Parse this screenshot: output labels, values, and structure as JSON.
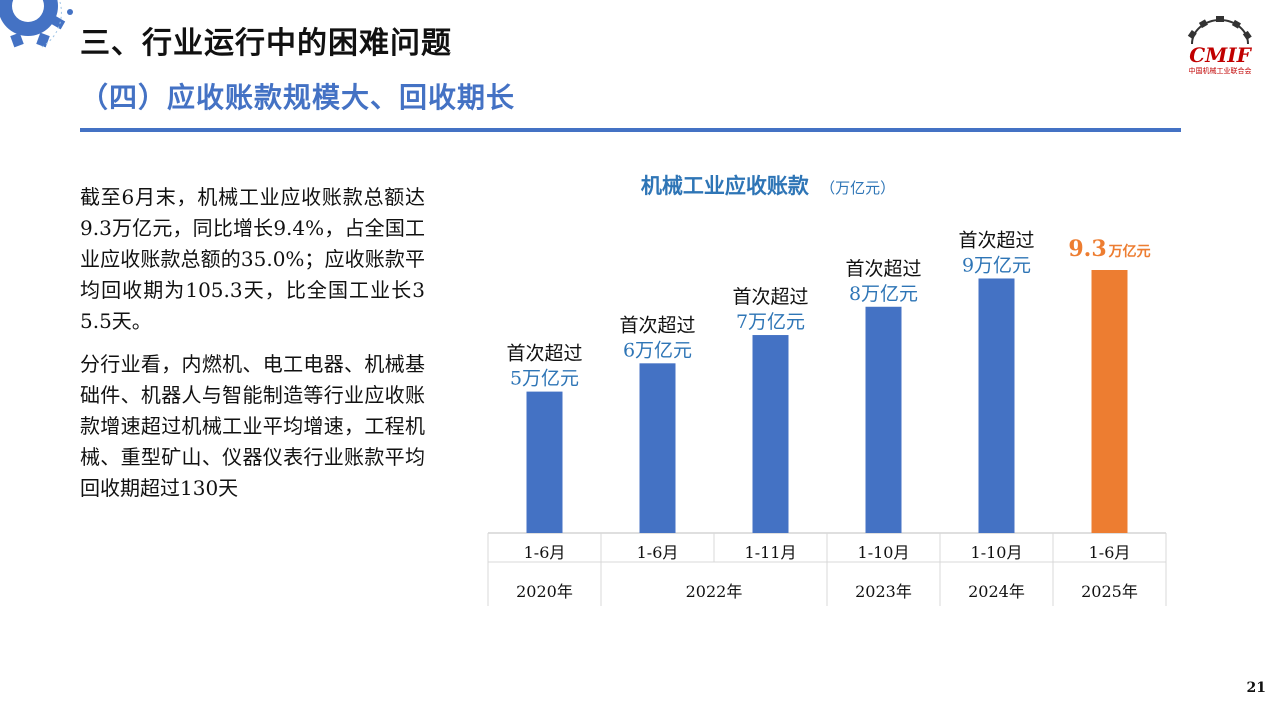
{
  "header": {
    "section_title": "三、行业运行中的困难问题",
    "sub_title": "（四）应收账款规模大、回收期长"
  },
  "logo": {
    "text": "CMIF",
    "caption": "中国机械工业联合会"
  },
  "body": {
    "paragraphs": [
      "截至6月末，机械工业应收账款总额达9.3万亿元，同比增长9.4%，占全国工业应收账款总额的35.0%；应收账款平均回收期为105.3天，比全国工业长35.5天。",
      "分行业看，内燃机、电工电器、机械基础件、机器人与智能制造等行业应收账款增速超过机械工业平均增速，工程机械、重型矿山、仪器仪表行业账款平均回收期超过130天"
    ]
  },
  "page_number": "21",
  "colors": {
    "accent": "#4472C4",
    "highlight": "#ED7D31",
    "label_blue": "#2E75B6",
    "brand_red": "#C00000"
  },
  "chart_data": {
    "type": "bar",
    "title": "机械工业应收账款",
    "unit_label": "（万亿元）",
    "ylim": [
      0,
      9.3
    ],
    "categories": [
      "1-6月",
      "1-6月",
      "1-11月",
      "1-10月",
      "1-10月",
      "1-6月"
    ],
    "year_groups": [
      {
        "label": "2020年",
        "span": 1
      },
      {
        "label": "2022年",
        "span": 2
      },
      {
        "label": "2023年",
        "span": 1
      },
      {
        "label": "2024年",
        "span": 1
      },
      {
        "label": "2025年",
        "span": 1
      }
    ],
    "values": [
      5,
      6,
      7,
      8,
      9,
      9.3
    ],
    "highlight_index": 5,
    "annotations": [
      {
        "line1": "首次超过",
        "line2": "5万亿元"
      },
      {
        "line1": "首次超过",
        "line2": "6万亿元"
      },
      {
        "line1": "首次超过",
        "line2": "7万亿元"
      },
      {
        "line1": "首次超过",
        "line2": "8万亿元"
      },
      {
        "line1": "首次超过",
        "line2": "9万亿元"
      },
      {
        "value": "9.3",
        "unit": "万亿元"
      }
    ]
  }
}
